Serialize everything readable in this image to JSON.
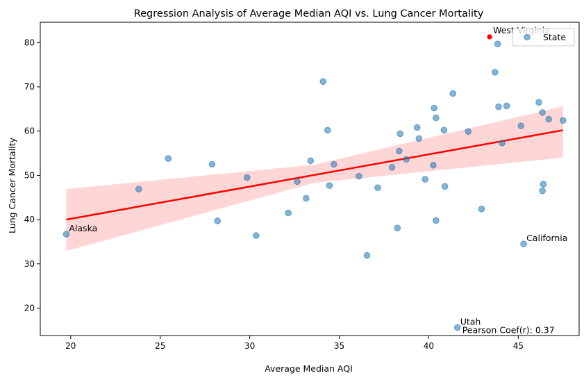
{
  "chart_data": {
    "type": "scatter",
    "title": "Regression Analysis of Average Median AQI vs. Lung Cancer Mortality",
    "xlabel": "Average Median AQI",
    "ylabel": "Lung Cancer Mortality",
    "xlim": [
      18.3,
      48.4
    ],
    "ylim": [
      13.8,
      84.6
    ],
    "xticks": [
      20,
      25,
      30,
      35,
      40,
      45
    ],
    "yticks": [
      20,
      30,
      40,
      50,
      60,
      70,
      80
    ],
    "grid": false,
    "legend": {
      "placement": "top-right",
      "entries": [
        "State"
      ]
    },
    "colors": {
      "points": "#1f77b4",
      "highlight": "#ff0000",
      "regression": "#ff0000",
      "band": "#ffcccc"
    },
    "series": [
      {
        "name": "State",
        "points": [
          [
            19.75,
            36.7
          ],
          [
            23.8,
            46.9
          ],
          [
            25.45,
            53.8
          ],
          [
            27.9,
            52.5
          ],
          [
            28.2,
            39.7
          ],
          [
            29.85,
            49.5
          ],
          [
            30.35,
            36.4
          ],
          [
            32.15,
            41.5
          ],
          [
            32.65,
            48.6
          ],
          [
            33.15,
            44.8
          ],
          [
            33.4,
            53.3
          ],
          [
            34.1,
            71.2
          ],
          [
            34.35,
            60.2
          ],
          [
            34.45,
            47.7
          ],
          [
            34.7,
            52.5
          ],
          [
            36.1,
            49.8
          ],
          [
            36.55,
            31.9
          ],
          [
            37.15,
            47.2
          ],
          [
            37.95,
            51.8
          ],
          [
            38.25,
            38.1
          ],
          [
            38.35,
            55.5
          ],
          [
            38.4,
            59.4
          ],
          [
            38.75,
            53.6
          ],
          [
            39.35,
            60.8
          ],
          [
            39.45,
            58.3
          ],
          [
            39.8,
            49.1
          ],
          [
            40.25,
            52.3
          ],
          [
            40.3,
            65.2
          ],
          [
            40.4,
            63.0
          ],
          [
            40.4,
            39.8
          ],
          [
            40.85,
            60.2
          ],
          [
            40.9,
            47.5
          ],
          [
            41.35,
            68.5
          ],
          [
            41.6,
            15.6
          ],
          [
            42.2,
            59.9
          ],
          [
            42.95,
            42.4
          ],
          [
            43.7,
            73.3
          ],
          [
            43.85,
            79.7
          ],
          [
            43.9,
            65.5
          ],
          [
            44.1,
            57.3
          ],
          [
            44.35,
            65.7
          ],
          [
            45.15,
            61.2
          ],
          [
            45.3,
            34.5
          ],
          [
            46.15,
            66.5
          ],
          [
            46.35,
            64.2
          ],
          [
            46.35,
            46.5
          ],
          [
            46.4,
            48.0
          ],
          [
            46.7,
            62.7
          ],
          [
            47.5,
            62.4
          ]
        ]
      }
    ],
    "highlight_point": {
      "x": 43.4,
      "y": 81.3,
      "label": "West Virginia"
    },
    "regression": {
      "line": [
        [
          19.75,
          40.0
        ],
        [
          47.5,
          60.2
        ]
      ],
      "ci_upper": [
        [
          19.75,
          46.9
        ],
        [
          33.6,
          52.4
        ],
        [
          47.5,
          65.6
        ]
      ],
      "ci_lower": [
        [
          19.75,
          32.9
        ],
        [
          33.6,
          48.3
        ],
        [
          47.5,
          54.0
        ]
      ]
    },
    "annotations": [
      {
        "text": "Alaska",
        "x": 19.75,
        "y": 36.7
      },
      {
        "text": "California",
        "x": 45.3,
        "y": 34.5
      },
      {
        "text": "Utah",
        "x": 41.6,
        "y": 15.6
      }
    ],
    "stat_annotation": {
      "text": "Pearson Coef(r): 0.37",
      "x": 41.6,
      "y": 15.6
    }
  }
}
